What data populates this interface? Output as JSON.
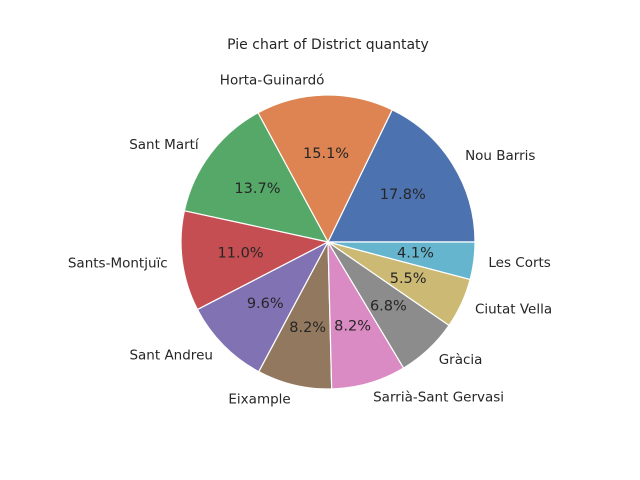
{
  "chart_data": {
    "type": "pie",
    "title": "Pie chart of District quantaty",
    "start_angle_deg": 0,
    "direction": "counterclockwise",
    "legend": "none",
    "slices": [
      {
        "label": "Nou Barris",
        "value": 17.8,
        "pct_text": "17.8%",
        "color": "#4c72b0"
      },
      {
        "label": "Horta-Guinardó",
        "value": 15.1,
        "pct_text": "15.1%",
        "color": "#dd8452"
      },
      {
        "label": "Sant Martí",
        "value": 13.7,
        "pct_text": "13.7%",
        "color": "#55a868"
      },
      {
        "label": "Sants-Montjuïc",
        "value": 11.0,
        "pct_text": "11.0%",
        "color": "#c44e52"
      },
      {
        "label": "Sant Andreu",
        "value": 9.6,
        "pct_text": "9.6%",
        "color": "#8172b3"
      },
      {
        "label": "Eixample",
        "value": 8.2,
        "pct_text": "8.2%",
        "color": "#937860"
      },
      {
        "label": "Sarrià-Sant Gervasi",
        "value": 8.2,
        "pct_text": "8.2%",
        "color": "#da8bc3"
      },
      {
        "label": "Gràcia",
        "value": 6.8,
        "pct_text": "6.8%",
        "color": "#8c8c8c"
      },
      {
        "label": "Ciutat Vella",
        "value": 5.5,
        "pct_text": "5.5%",
        "color": "#ccb974"
      },
      {
        "label": "Les Corts",
        "value": 4.1,
        "pct_text": "4.1%",
        "color": "#64b5cd"
      }
    ]
  }
}
